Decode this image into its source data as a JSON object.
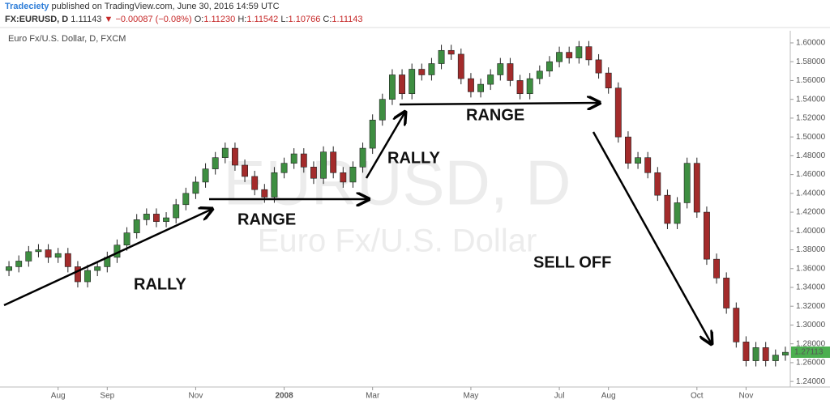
{
  "header": {
    "author": "Tradeciety",
    "published": "published on TradingView.com, June 30, 2016 14:59 UTC",
    "symbol": "FX:EURUSD, D",
    "last": "1.11143",
    "change": "▼ −0.00087 (−0.08%)",
    "o_label": "O:",
    "o": "1.11230",
    "h_label": "H:",
    "h": "1.11542",
    "l_label": "L:",
    "l": "1.10766",
    "c_label": "C:",
    "c": "1.11143"
  },
  "chart_data": {
    "type": "candlestick",
    "subtitle": "Euro Fx/U.S. Dollar, D, FXCM",
    "watermark": "EURUSD, D",
    "watermark_sub": "Euro Fx/U.S. Dollar",
    "annotations": [
      "RALLY",
      "RANGE",
      "RALLY",
      "RANGE",
      "SELL OFF"
    ],
    "up_color": "#3e8e41",
    "down_color": "#a32b2b",
    "last_price": 1.27113,
    "last_price_color": "#4caf50",
    "categories": [
      null,
      null,
      null,
      null,
      null,
      "Aug",
      null,
      null,
      null,
      null,
      "Sep",
      null,
      null,
      null,
      null,
      null,
      null,
      null,
      null,
      "Nov",
      null,
      null,
      null,
      null,
      null,
      null,
      null,
      null,
      "2008",
      null,
      null,
      null,
      null,
      null,
      null,
      null,
      null,
      "Mar",
      null,
      null,
      null,
      null,
      null,
      null,
      null,
      null,
      null,
      "May",
      null,
      null,
      null,
      null,
      null,
      null,
      null,
      null,
      "Jul",
      null,
      null,
      null,
      null,
      "Aug",
      null,
      null,
      null,
      null,
      null,
      null,
      null,
      null,
      "Oct",
      null,
      null,
      null,
      null,
      "Nov",
      null,
      null,
      null,
      null
    ],
    "open": [
      1.358,
      1.362,
      1.368,
      1.378,
      1.38,
      1.372,
      1.376,
      1.362,
      1.346,
      1.358,
      1.362,
      1.372,
      1.385,
      1.398,
      1.412,
      1.418,
      1.41,
      1.414,
      1.428,
      1.44,
      1.452,
      1.466,
      1.478,
      1.488,
      1.47,
      1.458,
      1.444,
      1.436,
      1.462,
      1.472,
      1.482,
      1.468,
      1.456,
      1.484,
      1.462,
      1.452,
      1.468,
      1.488,
      1.518,
      1.54,
      1.566,
      1.546,
      1.572,
      1.566,
      1.578,
      1.592,
      1.588,
      1.562,
      1.548,
      1.556,
      1.566,
      1.578,
      1.56,
      1.546,
      1.562,
      1.57,
      1.58,
      1.59,
      1.584,
      1.596,
      1.582,
      1.568,
      1.552,
      1.5,
      1.472,
      1.478,
      1.462,
      1.438,
      1.408,
      1.43,
      1.472,
      1.42,
      1.37,
      1.35,
      1.318,
      1.282,
      1.262,
      1.276,
      1.262,
      1.268
    ],
    "high": [
      1.368,
      1.374,
      1.384,
      1.386,
      1.386,
      1.382,
      1.382,
      1.368,
      1.364,
      1.368,
      1.378,
      1.391,
      1.404,
      1.418,
      1.424,
      1.424,
      1.42,
      1.434,
      1.446,
      1.458,
      1.472,
      1.484,
      1.494,
      1.494,
      1.476,
      1.464,
      1.45,
      1.468,
      1.478,
      1.488,
      1.488,
      1.474,
      1.49,
      1.49,
      1.468,
      1.474,
      1.494,
      1.524,
      1.546,
      1.572,
      1.572,
      1.578,
      1.578,
      1.584,
      1.598,
      1.598,
      1.594,
      1.568,
      1.562,
      1.572,
      1.584,
      1.584,
      1.566,
      1.568,
      1.576,
      1.586,
      1.596,
      1.596,
      1.602,
      1.602,
      1.588,
      1.574,
      1.558,
      1.506,
      1.484,
      1.484,
      1.468,
      1.444,
      1.436,
      1.478,
      1.478,
      1.426,
      1.376,
      1.356,
      1.324,
      1.288,
      1.282,
      1.282,
      1.274,
      1.277
    ],
    "low": [
      1.352,
      1.356,
      1.362,
      1.372,
      1.366,
      1.366,
      1.356,
      1.34,
      1.34,
      1.352,
      1.356,
      1.366,
      1.379,
      1.392,
      1.406,
      1.404,
      1.404,
      1.408,
      1.422,
      1.434,
      1.446,
      1.46,
      1.472,
      1.464,
      1.452,
      1.438,
      1.43,
      1.43,
      1.456,
      1.466,
      1.462,
      1.45,
      1.45,
      1.456,
      1.446,
      1.446,
      1.462,
      1.482,
      1.512,
      1.534,
      1.54,
      1.54,
      1.56,
      1.56,
      1.572,
      1.582,
      1.556,
      1.542,
      1.542,
      1.55,
      1.56,
      1.554,
      1.54,
      1.54,
      1.556,
      1.564,
      1.574,
      1.578,
      1.578,
      1.576,
      1.562,
      1.546,
      1.494,
      1.466,
      1.466,
      1.456,
      1.432,
      1.402,
      1.402,
      1.424,
      1.414,
      1.364,
      1.344,
      1.312,
      1.276,
      1.256,
      1.256,
      1.256,
      1.256,
      1.262
    ],
    "close": [
      1.362,
      1.368,
      1.378,
      1.38,
      1.372,
      1.376,
      1.362,
      1.346,
      1.358,
      1.362,
      1.372,
      1.385,
      1.398,
      1.412,
      1.418,
      1.41,
      1.414,
      1.428,
      1.44,
      1.452,
      1.466,
      1.478,
      1.488,
      1.47,
      1.458,
      1.444,
      1.436,
      1.462,
      1.472,
      1.482,
      1.468,
      1.456,
      1.484,
      1.462,
      1.452,
      1.468,
      1.488,
      1.518,
      1.54,
      1.566,
      1.546,
      1.572,
      1.566,
      1.578,
      1.592,
      1.588,
      1.562,
      1.548,
      1.556,
      1.566,
      1.578,
      1.56,
      1.546,
      1.562,
      1.57,
      1.58,
      1.59,
      1.584,
      1.596,
      1.582,
      1.568,
      1.552,
      1.5,
      1.472,
      1.478,
      1.462,
      1.438,
      1.408,
      1.43,
      1.472,
      1.42,
      1.37,
      1.35,
      1.318,
      1.282,
      1.262,
      1.276,
      1.262,
      1.268,
      1.271
    ],
    "ylim": [
      1.2341,
      1.6129
    ],
    "yticks": [
      {
        "value": 1.24,
        "label": "1.24000"
      },
      {
        "value": 1.26,
        "label": "1.26000"
      },
      {
        "value": 1.28,
        "label": "1.28000"
      },
      {
        "value": 1.3,
        "label": "1.30000"
      },
      {
        "value": 1.32,
        "label": "1.32000"
      },
      {
        "value": 1.34,
        "label": "1.34000"
      },
      {
        "value": 1.36,
        "label": "1.36000"
      },
      {
        "value": 1.38,
        "label": "1.38000"
      },
      {
        "value": 1.4,
        "label": "1.40000"
      },
      {
        "value": 1.42,
        "label": "1.42000"
      },
      {
        "value": 1.44,
        "label": "1.44000"
      },
      {
        "value": 1.46,
        "label": "1.46000"
      },
      {
        "value": 1.48,
        "label": "1.48000"
      },
      {
        "value": 1.5,
        "label": "1.50000"
      },
      {
        "value": 1.52,
        "label": "1.52000"
      },
      {
        "value": 1.54,
        "label": "1.54000"
      },
      {
        "value": 1.56,
        "label": "1.56000"
      },
      {
        "value": 1.58,
        "label": "1.58000"
      },
      {
        "value": 1.6,
        "label": "1.60000"
      }
    ],
    "grid": false
  }
}
